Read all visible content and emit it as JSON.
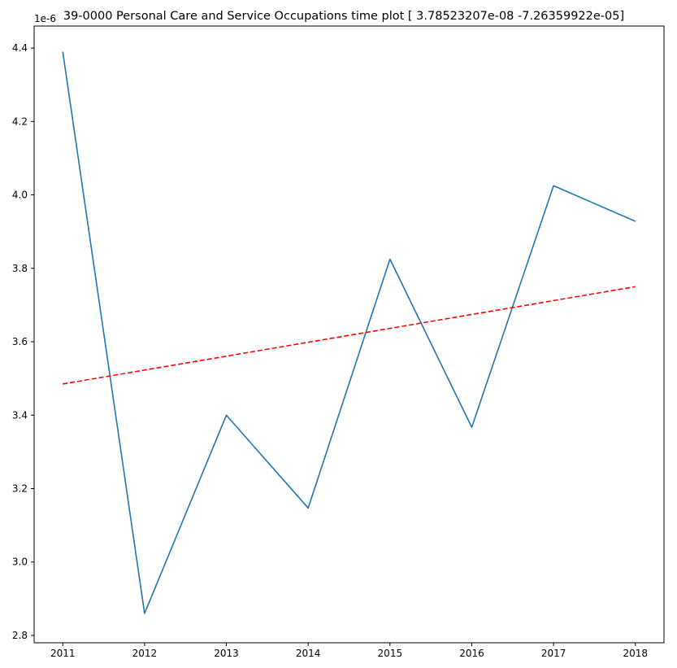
{
  "chart_data": {
    "type": "line",
    "title": "39-0000 Personal Care and Service Occupations time plot [ 3.78523207e-08 -7.26359922e-05]",
    "offset_label": "1e-6",
    "x_ticks": [
      "2011",
      "2012",
      "2013",
      "2014",
      "2015",
      "2016",
      "2017",
      "2018"
    ],
    "y_ticks": [
      "2.8",
      "3.0",
      "3.2",
      "3.4",
      "3.6",
      "3.8",
      "4.0",
      "4.2",
      "4.4"
    ],
    "y_tick_values": [
      2.8,
      3.0,
      3.2,
      3.4,
      3.6,
      3.8,
      4.0,
      4.2,
      4.4
    ],
    "xlim": [
      2010.65,
      2018.35
    ],
    "ylim": [
      2.78,
      4.46
    ],
    "y_scale_factor": 1e-06,
    "grid": false,
    "series": [
      {
        "x": [
          2011,
          2012,
          2013,
          2014,
          2015,
          2016,
          2017,
          2018
        ],
        "values": [
          4.39,
          2.86,
          3.4,
          3.147,
          3.825,
          3.367,
          4.025,
          3.928
        ],
        "color": "#1f77b4",
        "linestyle": "solid"
      },
      {
        "x": [
          2011,
          2018
        ],
        "values": [
          3.485,
          3.75
        ],
        "color": "#ff0000",
        "linestyle": "dashed"
      }
    ]
  }
}
